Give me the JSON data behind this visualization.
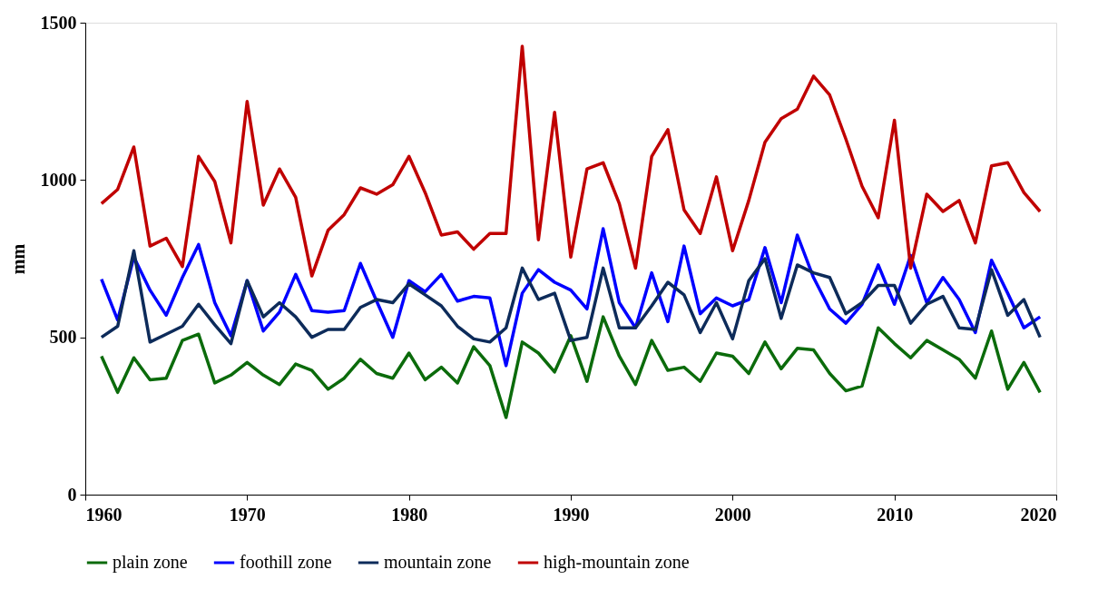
{
  "chart_data": {
    "type": "line",
    "ylabel": "mm",
    "xlim": [
      1960,
      2020
    ],
    "xticks": [
      1960,
      1970,
      1980,
      1990,
      2000,
      2010,
      2020
    ],
    "ylim": [
      0,
      1500
    ],
    "yticks": [
      0,
      500,
      1000,
      1500
    ],
    "grid": false,
    "legend": "bottom",
    "line_style": "solid",
    "x": [
      1961,
      1962,
      1963,
      1964,
      1965,
      1966,
      1967,
      1968,
      1969,
      1970,
      1971,
      1972,
      1973,
      1974,
      1975,
      1976,
      1977,
      1978,
      1979,
      1980,
      1981,
      1982,
      1983,
      1984,
      1985,
      1986,
      1987,
      1988,
      1989,
      1990,
      1991,
      1992,
      1993,
      1994,
      1995,
      1996,
      1997,
      1998,
      1999,
      2000,
      2001,
      2002,
      2003,
      2004,
      2005,
      2006,
      2007,
      2008,
      2009,
      2010,
      2011,
      2012,
      2013,
      2014,
      2015,
      2016,
      2017,
      2018,
      2019
    ],
    "series": [
      {
        "name": "plain zone",
        "color": "#0b6b0b",
        "values": [
          440,
          325,
          435,
          365,
          370,
          490,
          510,
          355,
          380,
          420,
          380,
          350,
          415,
          395,
          335,
          370,
          430,
          385,
          370,
          450,
          365,
          405,
          355,
          470,
          410,
          245,
          485,
          450,
          390,
          505,
          360,
          565,
          440,
          350,
          490,
          395,
          405,
          360,
          450,
          440,
          385,
          485,
          400,
          465,
          460,
          385,
          330,
          345,
          530,
          480,
          435,
          490,
          460,
          430,
          370,
          520,
          335,
          420,
          325
        ]
      },
      {
        "name": "foothill zone",
        "color": "#0000ff",
        "values": [
          685,
          555,
          755,
          650,
          570,
          690,
          795,
          610,
          505,
          680,
          520,
          580,
          700,
          585,
          580,
          585,
          735,
          615,
          500,
          680,
          645,
          700,
          615,
          630,
          625,
          410,
          640,
          715,
          675,
          650,
          590,
          845,
          610,
          530,
          705,
          550,
          790,
          575,
          625,
          600,
          620,
          785,
          610,
          825,
          690,
          590,
          545,
          605,
          730,
          605,
          760,
          610,
          690,
          620,
          515,
          745,
          640,
          530,
          565
        ]
      },
      {
        "name": "mountain zone",
        "color": "#0d2b5a",
        "values": [
          500,
          535,
          775,
          485,
          510,
          535,
          605,
          540,
          480,
          680,
          565,
          610,
          565,
          500,
          525,
          525,
          595,
          620,
          610,
          670,
          635,
          600,
          535,
          495,
          485,
          530,
          720,
          620,
          640,
          490,
          500,
          720,
          530,
          530,
          600,
          675,
          635,
          515,
          610,
          495,
          680,
          750,
          560,
          730,
          705,
          690,
          575,
          610,
          665,
          665,
          545,
          605,
          630,
          530,
          525,
          715,
          570,
          620,
          500
        ]
      },
      {
        "name": "high-mountain zone",
        "color": "#c00000",
        "values": [
          925,
          970,
          1105,
          790,
          815,
          725,
          1075,
          995,
          800,
          1250,
          920,
          1035,
          945,
          695,
          840,
          890,
          975,
          955,
          985,
          1075,
          960,
          825,
          835,
          780,
          830,
          830,
          1425,
          810,
          1215,
          755,
          1035,
          1055,
          925,
          720,
          1075,
          1160,
          905,
          830,
          1010,
          775,
          935,
          1120,
          1195,
          1225,
          1330,
          1270,
          1130,
          980,
          880,
          1190,
          720,
          955,
          900,
          935,
          800,
          1045,
          1055,
          960,
          900
        ]
      }
    ]
  }
}
